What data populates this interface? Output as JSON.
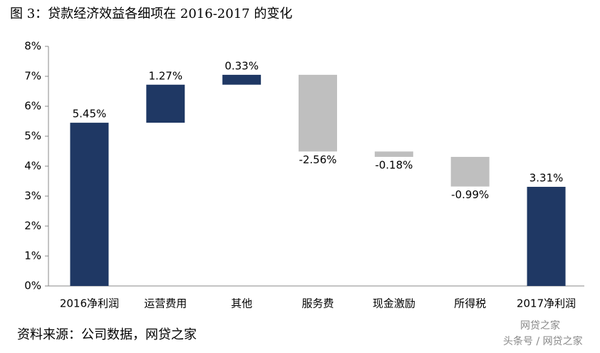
{
  "chart_data": {
    "type": "waterfall",
    "title": "图 3：贷款经济效益各细项在 2016-2017 的变化",
    "source": "资料来源：公司数据，网贷之家",
    "watermark": [
      "网贷之家",
      "头条号 / 网贷之家"
    ],
    "categories": [
      "2016净利润",
      "运营费用",
      "其他",
      "服务费",
      "现金激励",
      "所得税",
      "2017净利润"
    ],
    "values": [
      5.45,
      1.27,
      0.33,
      -2.56,
      -0.18,
      -0.99,
      3.31
    ],
    "value_labels": [
      "5.45%",
      "1.27%",
      "0.33%",
      "-2.56%",
      "-0.18%",
      "-0.99%",
      "3.31%"
    ],
    "measure": [
      "absolute",
      "relative",
      "relative",
      "relative",
      "relative",
      "relative",
      "absolute"
    ],
    "colors": {
      "total": "#1f3864",
      "increase": "#1f3864",
      "decrease": "#bfbfbf"
    },
    "ylim": [
      0,
      8
    ],
    "yticks": [
      {
        "value": 0,
        "label": "0%"
      },
      {
        "value": 1,
        "label": "1%"
      },
      {
        "value": 2,
        "label": "2%"
      },
      {
        "value": 3,
        "label": "3%"
      },
      {
        "value": 4,
        "label": "4%"
      },
      {
        "value": 5,
        "label": "5%"
      },
      {
        "value": 6,
        "label": "6%"
      },
      {
        "value": 7,
        "label": "7%"
      },
      {
        "value": 8,
        "label": "8%"
      }
    ],
    "grid": false
  }
}
